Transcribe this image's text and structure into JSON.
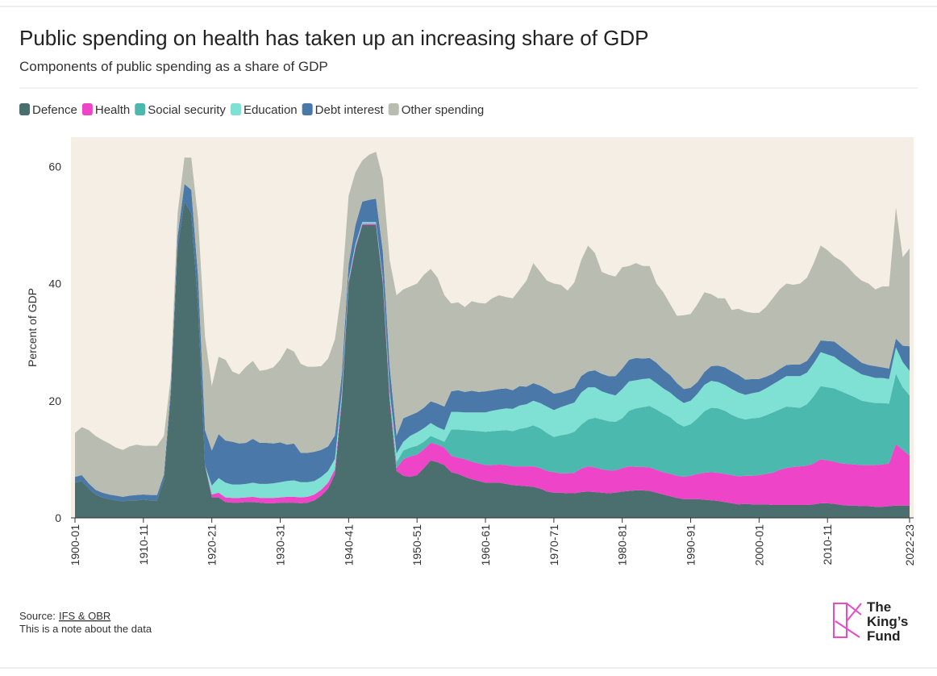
{
  "chart_data": {
    "type": "stacked-area",
    "title": "Public spending on health has taken up an increasing share of GDP",
    "subtitle": "Components of public spending as a share of GDP",
    "y_label": "Percent of GDP",
    "categories": [
      "1900-01",
      null,
      null,
      null,
      null,
      null,
      null,
      null,
      null,
      null,
      "1910-11",
      null,
      null,
      null,
      null,
      null,
      null,
      null,
      null,
      null,
      "1920-21",
      null,
      null,
      null,
      null,
      null,
      null,
      null,
      null,
      null,
      "1930-31",
      null,
      null,
      null,
      null,
      null,
      null,
      null,
      null,
      null,
      "1940-41",
      null,
      null,
      null,
      null,
      null,
      null,
      null,
      null,
      null,
      "1950-51",
      null,
      null,
      null,
      null,
      null,
      null,
      null,
      null,
      null,
      "1960-61",
      null,
      null,
      null,
      null,
      null,
      null,
      null,
      null,
      null,
      "1970-71",
      null,
      null,
      null,
      null,
      null,
      null,
      null,
      null,
      null,
      "1980-81",
      null,
      null,
      null,
      null,
      null,
      null,
      null,
      null,
      null,
      "1990-91",
      null,
      null,
      null,
      null,
      null,
      null,
      null,
      null,
      null,
      "2000-01",
      null,
      null,
      null,
      null,
      null,
      null,
      null,
      null,
      null,
      "2010-11",
      null,
      null,
      null,
      null,
      null,
      null,
      null,
      null,
      null,
      null,
      null,
      "2022-23"
    ],
    "series": [
      {
        "name": "Defence",
        "color": "#4a6f6e",
        "values": [
          6,
          6.3,
          5,
          4,
          3.5,
          3.2,
          3,
          2.8,
          3,
          3,
          3.1,
          3,
          3,
          6.5,
          21,
          46,
          54,
          52,
          36,
          9,
          3.5,
          3.5,
          2.7,
          2.6,
          2.6,
          2.7,
          2.7,
          2.6,
          2.5,
          2.5,
          2.6,
          2.6,
          2.6,
          2.5,
          2.6,
          3,
          3.8,
          5,
          7.5,
          20,
          40,
          46,
          50,
          50,
          50,
          40,
          20,
          8,
          7.2,
          7,
          7.3,
          8.5,
          9.8,
          9.5,
          9,
          7.8,
          7.5,
          7,
          6.6,
          6.3,
          6,
          6,
          6,
          5.8,
          5.6,
          5.5,
          5.4,
          5.3,
          5,
          4.5,
          4.3,
          4.3,
          4.2,
          4.2,
          4.4,
          4.5,
          4.4,
          4.3,
          4.2,
          4.3,
          4.5,
          4.6,
          4.7,
          4.7,
          4.6,
          4.3,
          4,
          3.7,
          3.4,
          3.2,
          3.2,
          3.2,
          3.1,
          3,
          2.9,
          2.7,
          2.5,
          2.3,
          2.4,
          2.3,
          2.3,
          2.3,
          2.2,
          2.2,
          2.2,
          2.2,
          2.2,
          2.2,
          2.3,
          2.5,
          2.5,
          2.4,
          2.2,
          2.1,
          2.1,
          2,
          2,
          1.9,
          1.9,
          2,
          2.1,
          2.1,
          2.1
        ]
      },
      {
        "name": "Health",
        "color": "#ee44c8",
        "values": [
          0,
          0,
          0,
          0,
          0,
          0,
          0,
          0,
          0,
          0,
          0,
          0,
          0,
          0,
          0,
          0,
          0,
          0,
          0,
          0,
          0.5,
          0.8,
          0.8,
          0.8,
          0.8,
          0.8,
          0.9,
          0.8,
          0.9,
          0.9,
          0.9,
          1,
          1,
          1,
          1,
          1,
          1,
          1,
          0.8,
          0.5,
          0.3,
          0.3,
          0.2,
          0.2,
          0.2,
          0.5,
          0.8,
          0.5,
          2.8,
          3.5,
          3.5,
          3.2,
          3,
          3,
          3,
          2.8,
          2.8,
          3,
          3,
          3,
          3,
          3,
          3.1,
          3.2,
          3.2,
          3.3,
          3.4,
          3.5,
          3.5,
          3.5,
          3.5,
          3.3,
          3.4,
          3.5,
          4,
          4.3,
          4.2,
          4,
          3.9,
          3.8,
          4,
          4.2,
          4,
          4,
          4,
          3.9,
          3.8,
          3.8,
          3.8,
          3.8,
          4,
          4.3,
          4.6,
          4.8,
          4.8,
          4.8,
          4.8,
          4.8,
          4.8,
          4.9,
          5,
          5.2,
          5.5,
          6,
          6.3,
          6.5,
          6.6,
          6.7,
          7,
          7.5,
          7.3,
          7.2,
          7.1,
          7.1,
          7,
          7,
          7,
          7.1,
          7.2,
          7.3,
          10.5,
          9.5,
          8.5
        ]
      },
      {
        "name": "Social security",
        "color": "#4bb9ae",
        "values": [
          0,
          0,
          0,
          0,
          0,
          0,
          0,
          0,
          0,
          0,
          0,
          0,
          0,
          0,
          0,
          0,
          0,
          0,
          0,
          0,
          0,
          0,
          0,
          0,
          0,
          0,
          0,
          0,
          0,
          0,
          0,
          0,
          0,
          0,
          0,
          0,
          0,
          0,
          0,
          0,
          0,
          0,
          0,
          0,
          0,
          0,
          0,
          1,
          1.5,
          1.5,
          1.5,
          1.3,
          1.2,
          1,
          1,
          4.5,
          4.8,
          5,
          5.3,
          5.5,
          5.7,
          5.8,
          5.8,
          6,
          6,
          6.4,
          6.6,
          7,
          6.8,
          6.5,
          6,
          6.5,
          6.7,
          7,
          7.5,
          8,
          8.5,
          8.5,
          8.4,
          8.3,
          8.5,
          9.5,
          10,
          10.2,
          10.5,
          10.3,
          10,
          9.7,
          9,
          8.6,
          8.8,
          9.5,
          10.5,
          11,
          11,
          10.8,
          10.3,
          10,
          9.6,
          9.8,
          9.8,
          10,
          10.3,
          10.3,
          10.5,
          10.2,
          10,
          10.5,
          11.5,
          12.5,
          12.5,
          12.5,
          12.3,
          11.9,
          11.5,
          11,
          10.8,
          10.6,
          10.5,
          10.2,
          12,
          10.7,
          10.3
        ]
      },
      {
        "name": "Education",
        "color": "#7fe0d4",
        "values": [
          0,
          0,
          0,
          0,
          0,
          0,
          0,
          0,
          0,
          0,
          0,
          0,
          0,
          0,
          0,
          0,
          0,
          0,
          0,
          0,
          1.5,
          2.5,
          2.5,
          2.3,
          2.3,
          2.3,
          2.4,
          2.4,
          2.4,
          2.5,
          2.6,
          2.7,
          2.8,
          2.6,
          2.5,
          2.3,
          2.2,
          2,
          1.8,
          1,
          0.5,
          0.5,
          0.3,
          0.3,
          0.3,
          0.5,
          1,
          1.5,
          1.5,
          2,
          2.3,
          2.3,
          2.2,
          2,
          2,
          3,
          3,
          3,
          3.1,
          3.2,
          3.3,
          3.5,
          3.6,
          3.7,
          3.8,
          4,
          4,
          4.2,
          4.3,
          4.5,
          4.6,
          4.8,
          5,
          5,
          5.5,
          5.5,
          5.2,
          4.8,
          4.7,
          4.5,
          5,
          5,
          4.8,
          4.8,
          4.7,
          4.5,
          4.3,
          4.2,
          4.2,
          4,
          4,
          4.2,
          4.5,
          4.6,
          4.5,
          4.4,
          4.4,
          4.3,
          4.2,
          4.3,
          4.4,
          4.6,
          4.8,
          5,
          5.2,
          5.3,
          5.4,
          5.4,
          5.6,
          5.8,
          5.6,
          5.4,
          5,
          4.8,
          4.6,
          4.5,
          4.4,
          4.3,
          4.3,
          4.2,
          4.5,
          4.3,
          4.2
        ]
      },
      {
        "name": "Debt interest",
        "color": "#4a78a8",
        "values": [
          1,
          1,
          0.9,
          0.8,
          0.8,
          0.8,
          0.8,
          0.8,
          0.8,
          0.9,
          0.9,
          0.9,
          0.9,
          0.9,
          1,
          2,
          3,
          4,
          5,
          6,
          6,
          7.5,
          7.2,
          7.3,
          7,
          7,
          7.5,
          7,
          7,
          6.8,
          6.8,
          6.2,
          6.3,
          5,
          5,
          5,
          4.6,
          4.2,
          4,
          3,
          2.5,
          3.2,
          3.5,
          3.8,
          4,
          4.5,
          4,
          3,
          4,
          3.5,
          3.4,
          3.5,
          3.7,
          4,
          4,
          3.5,
          3.7,
          3.5,
          3.7,
          3.5,
          3.6,
          3.5,
          3.5,
          3.4,
          3.2,
          3.3,
          3,
          3,
          3,
          3,
          2.8,
          2.5,
          2.5,
          2.5,
          2.8,
          2.7,
          2.9,
          3,
          3,
          3.3,
          3.5,
          3.7,
          3.8,
          3.5,
          3.5,
          3.5,
          3.2,
          3,
          2.6,
          2.4,
          2.2,
          2,
          2.2,
          2.5,
          2.8,
          3,
          3,
          3,
          2.6,
          2.4,
          2.2,
          2,
          1.8,
          1.9,
          1.9,
          2,
          2,
          2,
          2,
          2,
          2.3,
          2.6,
          2.6,
          2.4,
          2.2,
          2,
          1.9,
          2,
          1.8,
          1.8,
          1.5,
          2.8,
          4.2
        ]
      },
      {
        "name": "Other spending",
        "color": "#b9bcb0",
        "values": [
          7.5,
          8.2,
          9.1,
          9.2,
          9,
          8.7,
          8.2,
          8,
          8.4,
          8.6,
          8.3,
          8.4,
          8.4,
          6.6,
          2,
          4,
          4.5,
          5.5,
          10,
          16,
          11,
          13.2,
          13.8,
          12,
          11.8,
          13,
          13.3,
          12.3,
          12.5,
          13,
          14.1,
          16.5,
          15.7,
          15.2,
          14.7,
          14.5,
          14.3,
          15,
          16.4,
          14.5,
          11.7,
          9,
          7,
          7.7,
          8,
          12.5,
          18.2,
          24,
          22,
          22,
          22,
          22.7,
          22.6,
          21.5,
          19,
          15,
          15,
          14.5,
          15.3,
          15.2,
          15,
          15.7,
          16,
          15.6,
          15.7,
          16.5,
          18.1,
          20.5,
          19.4,
          18.5,
          18.8,
          18.4,
          17,
          18,
          19.8,
          21.5,
          20,
          17.4,
          17.3,
          17,
          17.3,
          16,
          16.2,
          15.8,
          15.7,
          13.5,
          13.2,
          12.1,
          11.5,
          12.6,
          12.6,
          13.3,
          13.6,
          12.3,
          11.5,
          11.8,
          10.5,
          11.3,
          11.6,
          11.3,
          11.3,
          11.9,
          12.9,
          13.6,
          13.9,
          13.6,
          13.8,
          14.2,
          15.1,
          16.2,
          15.5,
          14.5,
          14.7,
          14.5,
          14.1,
          14,
          13.9,
          13.1,
          13.8,
          14,
          22.4,
          15.1,
          16.7
        ]
      }
    ],
    "ylim": [
      0,
      65
    ],
    "yticks": [
      0,
      20,
      40,
      60
    ],
    "grid": false,
    "plot_background": "#f5eee4",
    "source_label": "Source:",
    "source_link": "IFS & OBR",
    "note": "This is a note about the data",
    "logo": [
      "The",
      "King’s",
      "Fund"
    ]
  }
}
